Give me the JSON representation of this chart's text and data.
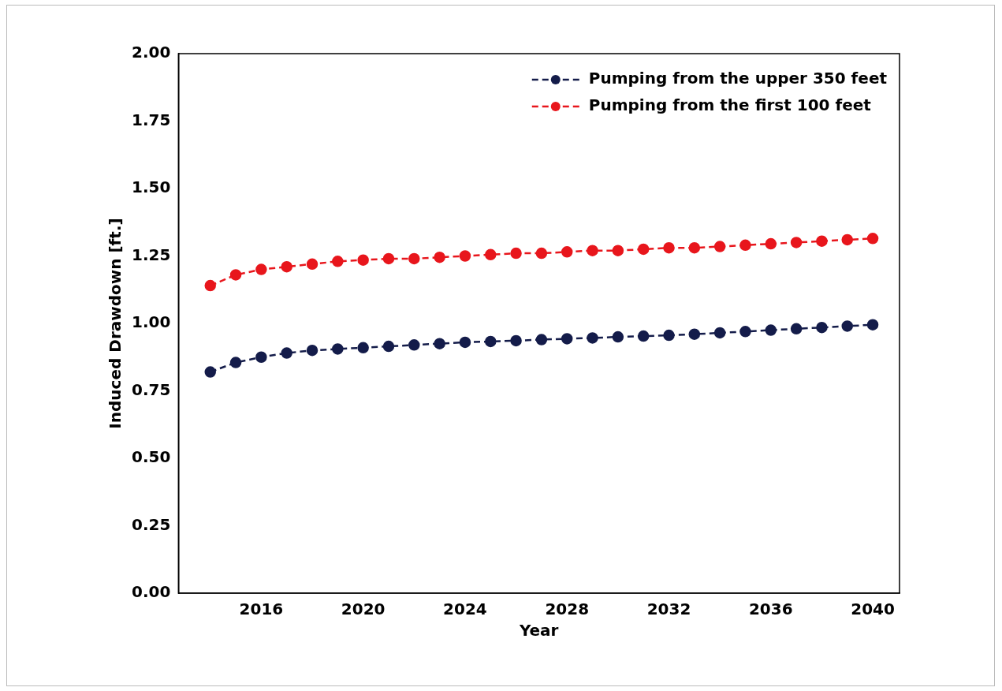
{
  "chart_data": {
    "type": "line",
    "xlabel": "Year",
    "ylabel": "Induced Drawdown [ft.]",
    "x": [
      2014,
      2015,
      2016,
      2017,
      2018,
      2019,
      2020,
      2021,
      2022,
      2023,
      2024,
      2025,
      2026,
      2027,
      2028,
      2029,
      2030,
      2031,
      2032,
      2033,
      2034,
      2035,
      2036,
      2037,
      2038,
      2039,
      2040
    ],
    "series": [
      {
        "name": "Pumping from the upper 350 feet",
        "color": "#141c4a",
        "values": [
          0.82,
          0.855,
          0.875,
          0.89,
          0.9,
          0.905,
          0.91,
          0.915,
          0.92,
          0.925,
          0.93,
          0.933,
          0.936,
          0.94,
          0.943,
          0.946,
          0.95,
          0.953,
          0.956,
          0.96,
          0.965,
          0.97,
          0.975,
          0.98,
          0.985,
          0.99,
          0.995
        ]
      },
      {
        "name": "Pumping from the first 100 feet",
        "color": "#e8161c",
        "values": [
          1.14,
          1.18,
          1.2,
          1.21,
          1.22,
          1.23,
          1.235,
          1.24,
          1.24,
          1.245,
          1.25,
          1.255,
          1.26,
          1.26,
          1.265,
          1.27,
          1.27,
          1.275,
          1.28,
          1.28,
          1.285,
          1.29,
          1.295,
          1.3,
          1.305,
          1.31,
          1.315
        ]
      }
    ],
    "xlim": [
      2012.75,
      2041.05
    ],
    "xticks": [
      2016,
      2020,
      2024,
      2028,
      2032,
      2036,
      2040
    ],
    "ylim": [
      0,
      2
    ],
    "yticks": [
      {
        "value": 0,
        "label": "0.00"
      },
      {
        "value": 0.25,
        "label": "0.25"
      },
      {
        "value": 0.5,
        "label": "0.50"
      },
      {
        "value": 0.75,
        "label": "0.75"
      },
      {
        "value": 1,
        "label": "1.00"
      },
      {
        "value": 1.25,
        "label": "1.25"
      },
      {
        "value": 1.5,
        "label": "1.50"
      },
      {
        "value": 1.75,
        "label": "1.75"
      },
      {
        "value": 2,
        "label": "2.00"
      }
    ],
    "grid": false,
    "legend": "top right",
    "marker": "circle",
    "line_style": "dashed"
  }
}
